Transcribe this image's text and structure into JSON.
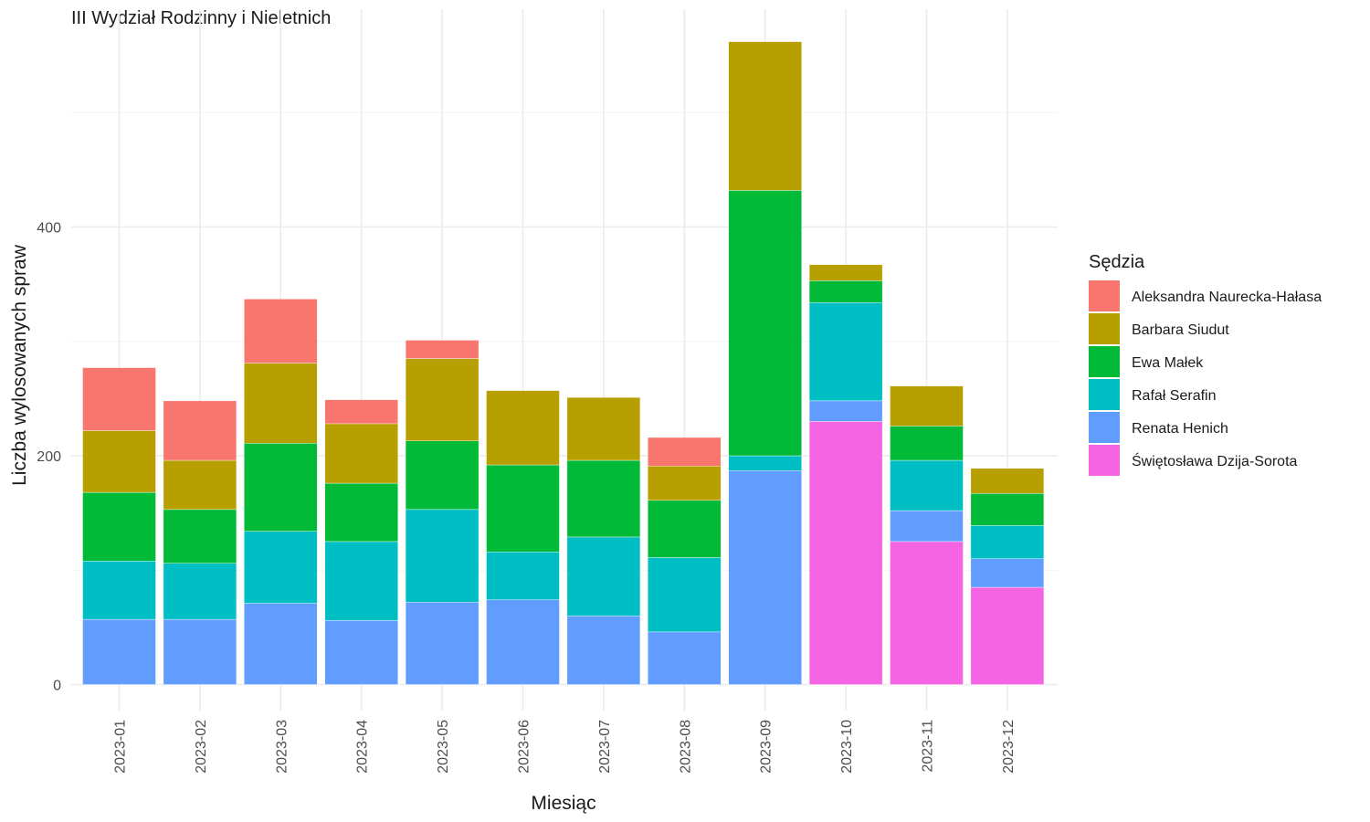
{
  "chart_data": {
    "type": "bar",
    "stacked": true,
    "title": "III Wydział Rodzinny i Nieletnich",
    "xlabel": "Miesiąc",
    "ylabel": "Liczba wylosowanych spraw",
    "ylim": [
      0,
      590
    ],
    "yticks": [
      0,
      200,
      400
    ],
    "grid": true,
    "legend_title": "Sędzia",
    "legend_position": "right",
    "categories": [
      "2023-01",
      "2023-02",
      "2023-03",
      "2023-04",
      "2023-05",
      "2023-06",
      "2023-07",
      "2023-08",
      "2023-09",
      "2023-10",
      "2023-11",
      "2023-12"
    ],
    "series": [
      {
        "name": "Aleksandra Naurecka-Hałasa",
        "color": "#F8766D",
        "values": [
          55,
          52,
          56,
          21,
          16,
          0,
          0,
          25,
          0,
          0,
          0,
          0
        ]
      },
      {
        "name": "Barbara Siudut",
        "color": "#B79F00",
        "values": [
          54,
          43,
          70,
          52,
          72,
          65,
          55,
          30,
          130,
          14,
          35,
          22
        ]
      },
      {
        "name": "Ewa Małek",
        "color": "#00BA38",
        "values": [
          60,
          47,
          77,
          51,
          60,
          76,
          67,
          50,
          232,
          19,
          30,
          28
        ]
      },
      {
        "name": "Rafał Serafin",
        "color": "#00BFC4",
        "values": [
          51,
          49,
          63,
          69,
          81,
          42,
          69,
          65,
          13,
          86,
          44,
          29
        ]
      },
      {
        "name": "Renata Henich",
        "color": "#619CFF",
        "values": [
          57,
          57,
          71,
          56,
          72,
          74,
          60,
          46,
          187,
          18,
          27,
          25
        ]
      },
      {
        "name": "Świętosława Dzija-Sorota",
        "color": "#F564E3",
        "values": [
          0,
          0,
          0,
          0,
          0,
          0,
          0,
          0,
          0,
          230,
          125,
          85
        ]
      }
    ]
  }
}
